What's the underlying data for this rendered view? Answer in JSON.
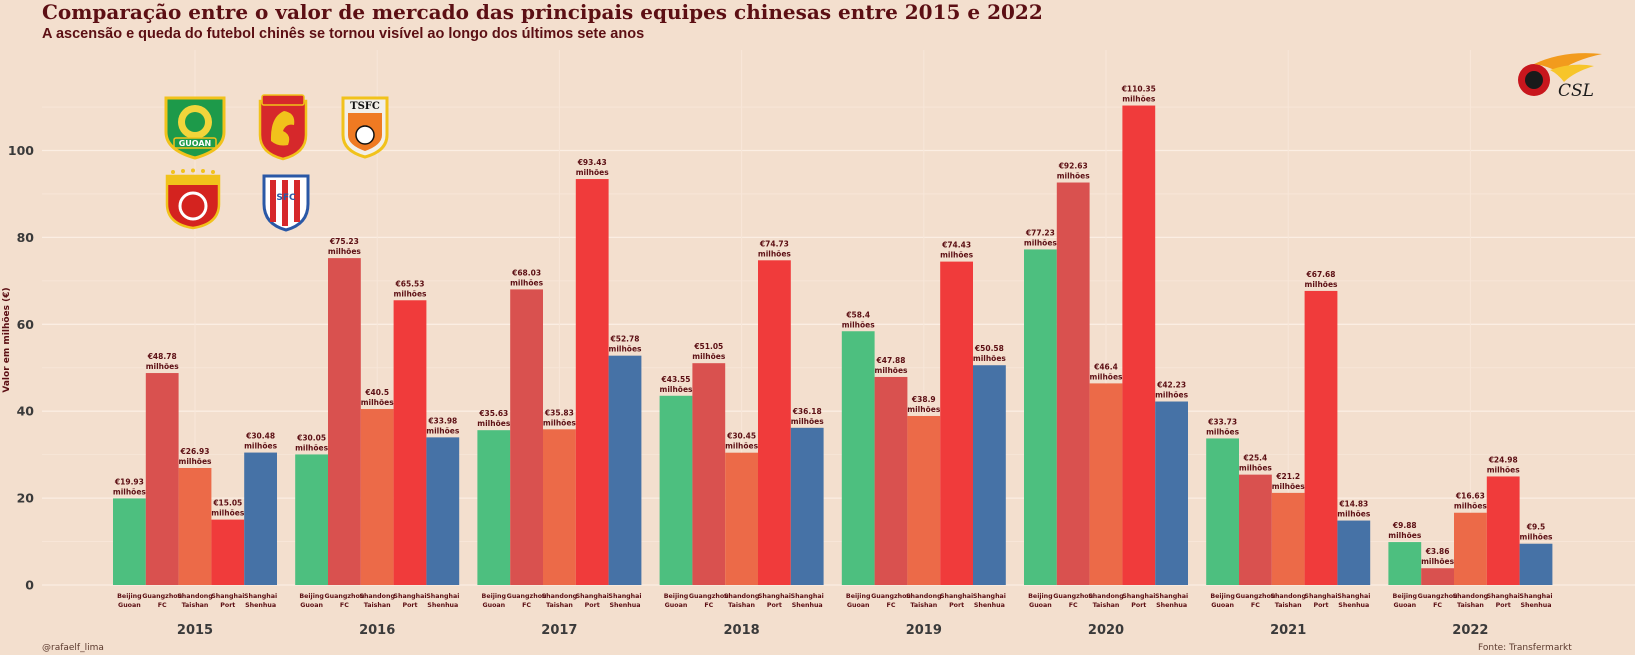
{
  "title": "Comparação entre o valor de mercado das principais equipes chinesas entre 2015 e 2022",
  "subtitle": "A ascensão e queda do futebol chinês se tornou visível ao longo dos últimos sete anos",
  "caption_left": "@rafaelf_lima",
  "caption_right": "Fonte: Transfermarkt",
  "logos": {
    "csl_text": "CSL",
    "gz_text": "GUOAN",
    "tsfc_text": "TSFC",
    "shenhua_text": "SFC"
  },
  "chart_data": {
    "type": "bar",
    "title": "Comparação entre o valor de mercado das principais equipes chinesas entre 2015 e 2022",
    "subtitle": "A ascensão e queda do futebol chinês se tornou visível ao longo dos últimos sete anos",
    "ylabel": "Valor em milhões (€)",
    "xlabel": "",
    "ylim": [
      0,
      112
    ],
    "yticks": [
      0,
      20,
      40,
      60,
      80,
      100
    ],
    "grid": true,
    "value_unit": "milhões",
    "value_prefix": "€",
    "categories": [
      "2015",
      "2016",
      "2017",
      "2018",
      "2019",
      "2020",
      "2021",
      "2022"
    ],
    "series": [
      {
        "name": "Beijing Guoan",
        "tick_label": [
          "Beijing",
          "Guoan"
        ],
        "color": "#4dbf7f",
        "values": [
          19.93,
          30.05,
          35.63,
          43.55,
          58.4,
          77.23,
          33.73,
          9.88
        ]
      },
      {
        "name": "Guangzhou FC",
        "tick_label": [
          "Guangzhou",
          "FC"
        ],
        "color": "#d9514f",
        "values": [
          48.78,
          75.23,
          68.03,
          51.05,
          47.88,
          92.63,
          25.4,
          3.86
        ]
      },
      {
        "name": "Shandong Taishan",
        "tick_label": [
          "Shandong",
          "Taishan"
        ],
        "color": "#ec6a48",
        "values": [
          26.93,
          40.5,
          35.83,
          30.45,
          38.9,
          46.4,
          21.2,
          16.63
        ]
      },
      {
        "name": "Shanghai Port",
        "tick_label": [
          "Shanghai",
          "Port"
        ],
        "color": "#f03b3b",
        "values": [
          15.05,
          65.53,
          93.43,
          74.73,
          74.43,
          110.35,
          67.68,
          24.98
        ]
      },
      {
        "name": "Shanghai Shenhua",
        "tick_label": [
          "Shanghai",
          "Shenhua"
        ],
        "color": "#4672a6",
        "values": [
          30.48,
          33.98,
          52.78,
          36.18,
          50.58,
          42.23,
          14.83,
          9.5
        ]
      }
    ]
  }
}
